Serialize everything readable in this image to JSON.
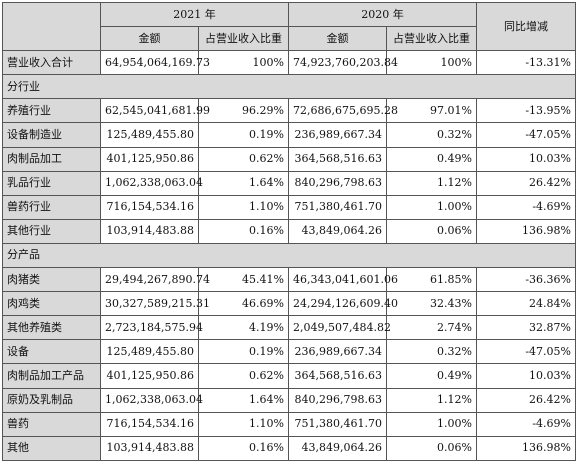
{
  "header": {
    "year_2021": "2021 年",
    "year_2020": "2020 年",
    "yoy": "同比增减",
    "amount": "金额",
    "ratio": "占营业收入比重"
  },
  "total_row": {
    "label": "营业收入合计",
    "amt_2021": "64,954,064,169.73",
    "ratio_2021": "100%",
    "amt_2020": "74,923,760,203.84",
    "ratio_2020": "100%",
    "yoy": "-13.31%"
  },
  "sections": [
    {
      "title": "分行业",
      "rows": [
        {
          "label": "养殖行业",
          "amt_2021": "62,545,041,681.99",
          "ratio_2021": "96.29%",
          "amt_2020": "72,686,675,695.28",
          "ratio_2020": "97.01%",
          "yoy": "-13.95%"
        },
        {
          "label": "设备制造业",
          "amt_2021": "125,489,455.80",
          "ratio_2021": "0.19%",
          "amt_2020": "236,989,667.34",
          "ratio_2020": "0.32%",
          "yoy": "-47.05%"
        },
        {
          "label": "肉制品加工",
          "amt_2021": "401,125,950.86",
          "ratio_2021": "0.62%",
          "amt_2020": "364,568,516.63",
          "ratio_2020": "0.49%",
          "yoy": "10.03%"
        },
        {
          "label": "乳品行业",
          "amt_2021": "1,062,338,063.04",
          "ratio_2021": "1.64%",
          "amt_2020": "840,296,798.63",
          "ratio_2020": "1.12%",
          "yoy": "26.42%"
        },
        {
          "label": "兽药行业",
          "amt_2021": "716,154,534.16",
          "ratio_2021": "1.10%",
          "amt_2020": "751,380,461.70",
          "ratio_2020": "1.00%",
          "yoy": "-4.69%"
        },
        {
          "label": "其他行业",
          "amt_2021": "103,914,483.88",
          "ratio_2021": "0.16%",
          "amt_2020": "43,849,064.26",
          "ratio_2020": "0.06%",
          "yoy": "136.98%"
        }
      ]
    },
    {
      "title": "分产品",
      "rows": [
        {
          "label": "肉猪类",
          "amt_2021": "29,494,267,890.74",
          "ratio_2021": "45.41%",
          "amt_2020": "46,343,041,601.06",
          "ratio_2020": "61.85%",
          "yoy": "-36.36%"
        },
        {
          "label": "肉鸡类",
          "amt_2021": "30,327,589,215.31",
          "ratio_2021": "46.69%",
          "amt_2020": "24,294,126,609.40",
          "ratio_2020": "32.43%",
          "yoy": "24.84%"
        },
        {
          "label": "其他养殖类",
          "amt_2021": "2,723,184,575.94",
          "ratio_2021": "4.19%",
          "amt_2020": "2,049,507,484.82",
          "ratio_2020": "2.74%",
          "yoy": "32.87%"
        },
        {
          "label": "设备",
          "amt_2021": "125,489,455.80",
          "ratio_2021": "0.19%",
          "amt_2020": "236,989,667.34",
          "ratio_2020": "0.32%",
          "yoy": "-47.05%"
        },
        {
          "label": "肉制品加工产品",
          "amt_2021": "401,125,950.86",
          "ratio_2021": "0.62%",
          "amt_2020": "364,568,516.63",
          "ratio_2020": "0.49%",
          "yoy": "10.03%"
        },
        {
          "label": "原奶及乳制品",
          "amt_2021": "1,062,338,063.04",
          "ratio_2021": "1.64%",
          "amt_2020": "840,296,798.63",
          "ratio_2020": "1.12%",
          "yoy": "26.42%"
        },
        {
          "label": "兽药",
          "amt_2021": "716,154,534.16",
          "ratio_2021": "1.10%",
          "amt_2020": "751,380,461.70",
          "ratio_2020": "1.00%",
          "yoy": "-4.69%"
        },
        {
          "label": "其他",
          "amt_2021": "103,914,483.88",
          "ratio_2021": "0.16%",
          "amt_2020": "43,849,064.26",
          "ratio_2020": "0.06%",
          "yoy": "136.98%"
        }
      ]
    }
  ]
}
